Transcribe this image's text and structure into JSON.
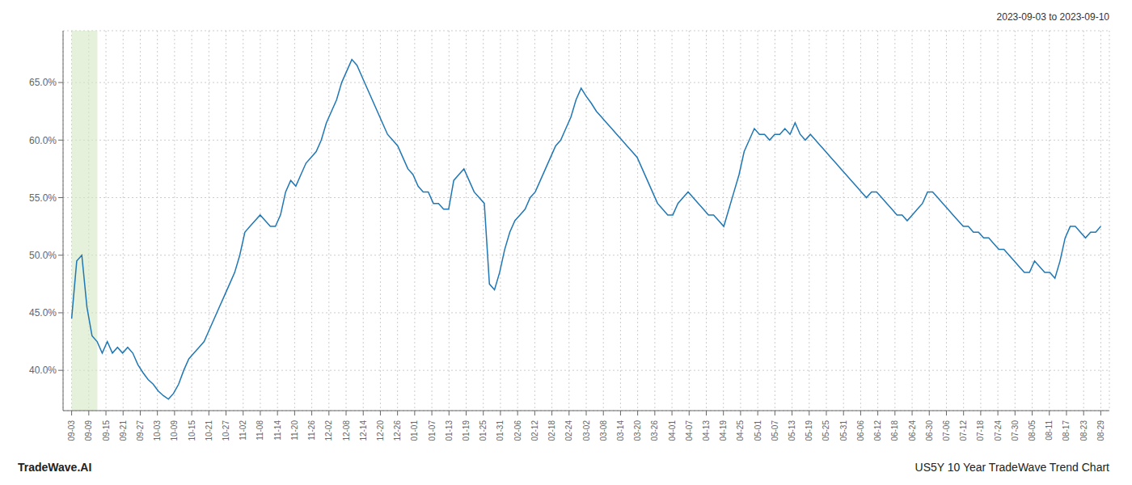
{
  "chart_data": {
    "type": "line",
    "title": "US5Y 10 Year TradeWave Trend Chart",
    "subtitle": "2023-09-03 to 2023-09-10",
    "annotations": [
      "TradeWave.AI"
    ],
    "color": "#1f77b4",
    "grid": true,
    "highlight": {
      "from": 0,
      "to": 1.5,
      "color": "#d4e8c2"
    },
    "xlim": [
      -0.5,
      60.5
    ],
    "xticks": [
      {
        "value": 0,
        "label": "09-03"
      },
      {
        "value": 1,
        "label": "09-09"
      },
      {
        "value": 2,
        "label": "09-15"
      },
      {
        "value": 3,
        "label": "09-21"
      },
      {
        "value": 4,
        "label": "09-27"
      },
      {
        "value": 5,
        "label": "10-03"
      },
      {
        "value": 6,
        "label": "10-09"
      },
      {
        "value": 7,
        "label": "10-15"
      },
      {
        "value": 8,
        "label": "10-21"
      },
      {
        "value": 9,
        "label": "10-27"
      },
      {
        "value": 10,
        "label": "11-02"
      },
      {
        "value": 11,
        "label": "11-08"
      },
      {
        "value": 12,
        "label": "11-14"
      },
      {
        "value": 13,
        "label": "11-20"
      },
      {
        "value": 14,
        "label": "11-26"
      },
      {
        "value": 15,
        "label": "12-02"
      },
      {
        "value": 16,
        "label": "12-08"
      },
      {
        "value": 17,
        "label": "12-14"
      },
      {
        "value": 18,
        "label": "12-20"
      },
      {
        "value": 19,
        "label": "12-26"
      },
      {
        "value": 20,
        "label": "01-01"
      },
      {
        "value": 21,
        "label": "01-07"
      },
      {
        "value": 22,
        "label": "01-13"
      },
      {
        "value": 23,
        "label": "01-19"
      },
      {
        "value": 24,
        "label": "01-25"
      },
      {
        "value": 25,
        "label": "01-31"
      },
      {
        "value": 26,
        "label": "02-06"
      },
      {
        "value": 27,
        "label": "02-12"
      },
      {
        "value": 28,
        "label": "02-18"
      },
      {
        "value": 29,
        "label": "02-24"
      },
      {
        "value": 30,
        "label": "03-02"
      },
      {
        "value": 31,
        "label": "03-08"
      },
      {
        "value": 32,
        "label": "03-14"
      },
      {
        "value": 33,
        "label": "03-20"
      },
      {
        "value": 34,
        "label": "03-26"
      },
      {
        "value": 35,
        "label": "04-01"
      },
      {
        "value": 36,
        "label": "04-07"
      },
      {
        "value": 37,
        "label": "04-13"
      },
      {
        "value": 38,
        "label": "04-19"
      },
      {
        "value": 39,
        "label": "04-25"
      },
      {
        "value": 40,
        "label": "05-01"
      },
      {
        "value": 41,
        "label": "05-07"
      },
      {
        "value": 42,
        "label": "05-13"
      },
      {
        "value": 43,
        "label": "05-19"
      },
      {
        "value": 44,
        "label": "05-25"
      },
      {
        "value": 45,
        "label": "05-31"
      },
      {
        "value": 46,
        "label": "06-06"
      },
      {
        "value": 47,
        "label": "06-12"
      },
      {
        "value": 48,
        "label": "06-18"
      },
      {
        "value": 49,
        "label": "06-24"
      },
      {
        "value": 50,
        "label": "06-30"
      },
      {
        "value": 51,
        "label": "07-06"
      },
      {
        "value": 52,
        "label": "07-12"
      },
      {
        "value": 53,
        "label": "07-18"
      },
      {
        "value": 54,
        "label": "07-24"
      },
      {
        "value": 55,
        "label": "07-30"
      },
      {
        "value": 56,
        "label": "08-05"
      },
      {
        "value": 57,
        "label": "08-11"
      },
      {
        "value": 58,
        "label": "08-17"
      },
      {
        "value": 59,
        "label": "08-23"
      },
      {
        "value": 60,
        "label": "08-29"
      }
    ],
    "ylim": [
      36.5,
      69.5
    ],
    "yticks": [
      {
        "value": 40.0,
        "label": "40.0%"
      },
      {
        "value": 45.0,
        "label": "45.0%"
      },
      {
        "value": 50.0,
        "label": "50.0%"
      },
      {
        "value": 55.0,
        "label": "55.0%"
      },
      {
        "value": 60.0,
        "label": "60.0%"
      },
      {
        "value": 65.0,
        "label": "65.0%"
      }
    ],
    "x": [
      0,
      0.29703,
      0.594059,
      0.891089,
      1.188119,
      1.485149,
      1.782178,
      2.079208,
      2.376238,
      2.673267,
      2.970297,
      3.267327,
      3.564356,
      3.861386,
      4.158416,
      4.455446,
      4.752475,
      5.049505,
      5.346535,
      5.643564,
      5.940594,
      6.237624,
      6.534653,
      6.831683,
      7.128713,
      7.425743,
      7.722772,
      8.019802,
      8.316832,
      8.613861,
      8.910891,
      9.207921,
      9.50495,
      9.80198,
      10.09901,
      10.39604,
      10.693069,
      10.990099,
      11.287129,
      11.584158,
      11.881188,
      12.178218,
      12.475248,
      12.772277,
      13.069307,
      13.366337,
      13.663366,
      13.960396,
      14.257426,
      14.554455,
      14.851485,
      15.148515,
      15.445545,
      15.742574,
      16.039604,
      16.336634,
      16.633663,
      16.930693,
      17.227723,
      17.524752,
      17.821782,
      18.118812,
      18.415842,
      18.712871,
      19.009901,
      19.306931,
      19.60396,
      19.90099,
      20.19802,
      20.49505,
      20.792079,
      21.089109,
      21.386139,
      21.683168,
      21.980198,
      22.277228,
      22.574257,
      22.871287,
      23.168317,
      23.465347,
      23.762376,
      24.059406,
      24.356436,
      24.653465,
      24.950495,
      25.247525,
      25.544554,
      25.841584,
      26.138614,
      26.435644,
      26.732673,
      27.029703,
      27.326733,
      27.623762,
      27.920792,
      28.217822,
      28.514851,
      28.811881,
      29.108911,
      29.405941,
      29.70297,
      30,
      30.29703,
      30.594059,
      30.891089,
      31.188119,
      31.485149,
      31.782178,
      32.079208,
      32.376238,
      32.673267,
      32.970297,
      33.267327,
      33.564356,
      33.861386,
      34.158416,
      34.455446,
      34.752475,
      35.049505,
      35.346535,
      35.643564,
      35.940594,
      36.237624,
      36.534653,
      36.831683,
      37.128713,
      37.425743,
      37.722772,
      38.019802,
      38.316832,
      38.613861,
      38.910891,
      39.207921,
      39.50495,
      39.80198,
      40.09901,
      40.39604,
      40.693069,
      40.990099,
      41.287129,
      41.584158,
      41.881188,
      42.178218,
      42.475248,
      42.772277,
      43.069307,
      43.366337,
      43.663366,
      43.960396,
      44.257426,
      44.554455,
      44.851485,
      45.148515,
      45.445545,
      45.742574,
      46.039604,
      46.336634,
      46.633663,
      46.930693,
      47.227723,
      47.524752,
      47.821782,
      48.118812,
      48.415842,
      48.712871,
      49.009901,
      49.306931,
      49.60396,
      49.90099,
      50.19802,
      50.49505,
      50.792079,
      51.089109,
      51.386139,
      51.683168,
      51.980198,
      52.277228,
      52.574257,
      52.871287,
      53.168317,
      53.465347,
      53.762376,
      54.059406,
      54.356436,
      54.653465,
      54.950495,
      55.247525,
      55.544554,
      55.841584,
      56.138614,
      56.435644,
      56.732673,
      57.029703,
      57.326733,
      57.623762,
      57.920792,
      58.217822,
      58.514851,
      58.811881,
      59.108911,
      59.405941,
      59.70297,
      60
    ],
    "values": [
      44.5,
      49.5,
      50.0,
      45.5,
      43.0,
      42.5,
      41.5,
      42.5,
      41.5,
      42.0,
      41.5,
      42.0,
      41.5,
      40.5,
      39.8,
      39.2,
      38.8,
      38.2,
      37.8,
      37.5,
      38.0,
      38.8,
      40.0,
      41.0,
      41.5,
      42.0,
      42.5,
      43.5,
      44.5,
      45.5,
      46.5,
      47.5,
      48.5,
      50.0,
      52.0,
      52.5,
      53.0,
      53.5,
      53.0,
      52.5,
      52.5,
      53.5,
      55.5,
      56.5,
      56.0,
      57.0,
      58.0,
      58.5,
      59.0,
      60.0,
      61.5,
      62.5,
      63.5,
      65.0,
      66.0,
      67.0,
      66.5,
      65.5,
      64.5,
      63.5,
      62.5,
      61.5,
      60.5,
      60.0,
      59.5,
      58.5,
      57.5,
      57.0,
      56.0,
      55.5,
      55.5,
      54.5,
      54.5,
      54.0,
      54.0,
      56.5,
      57.0,
      57.5,
      56.5,
      55.5,
      55.0,
      54.5,
      47.5,
      47.0,
      48.5,
      50.5,
      52.0,
      53.0,
      53.5,
      54.0,
      55.0,
      55.5,
      56.5,
      57.5,
      58.5,
      59.5,
      60.0,
      61.0,
      62.0,
      63.5,
      64.5,
      63.8,
      63.2,
      62.5,
      62.0,
      61.5,
      61.0,
      60.5,
      60.0,
      59.5,
      59.0,
      58.5,
      57.5,
      56.5,
      55.5,
      54.5,
      54.0,
      53.5,
      53.5,
      54.5,
      55.0,
      55.5,
      55.0,
      54.5,
      54.0,
      53.5,
      53.5,
      53.0,
      52.5,
      54.0,
      55.5,
      57.0,
      59.0,
      60.0,
      61.0,
      60.5,
      60.5,
      60.0,
      60.5,
      60.5,
      61.0,
      60.5,
      61.5,
      60.5,
      60.0,
      60.5,
      60.0,
      59.5,
      59.0,
      58.5,
      58.0,
      57.5,
      57.0,
      56.5,
      56.0,
      55.5,
      55.0,
      55.5,
      55.5,
      55.0,
      54.5,
      54.0,
      53.5,
      53.5,
      53.0,
      53.5,
      54.0,
      54.5,
      55.5,
      55.5,
      55.0,
      54.5,
      54.0,
      53.5,
      53.0,
      52.5,
      52.5,
      52.0,
      52.0,
      51.5,
      51.5,
      51.0,
      50.5,
      50.5,
      50.0,
      49.5,
      49.0,
      48.5,
      48.5,
      49.5,
      49.0,
      48.5,
      48.5,
      48.0,
      49.5,
      51.5,
      52.5,
      52.5,
      52.0,
      51.5,
      52.0,
      52.0,
      52.5
    ]
  }
}
